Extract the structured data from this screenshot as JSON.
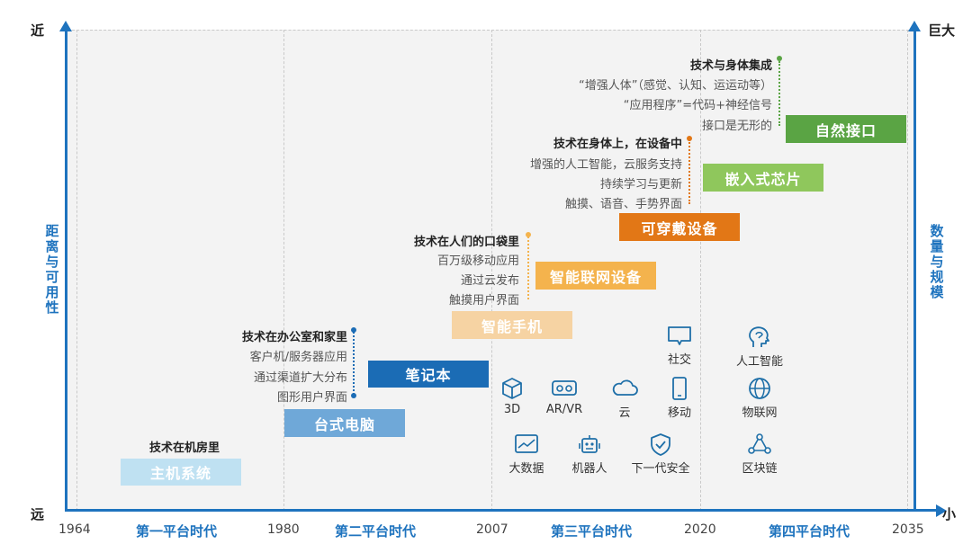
{
  "axes": {
    "top_left": "近",
    "bottom_left": "远",
    "top_right": "巨大",
    "bottom_right": "小",
    "left_label": "距离与可用性",
    "right_label": "数量与规模"
  },
  "years": [
    "1964",
    "1980",
    "2007",
    "2020",
    "2035"
  ],
  "eras": [
    "第一平台时代",
    "第二平台时代",
    "第三平台时代",
    "第四平台时代"
  ],
  "devices": [
    {
      "label": "主机系统",
      "color": "#bfe1f2"
    },
    {
      "label": "台式电脑",
      "color": "#6fa8d8"
    },
    {
      "label": "笔记本",
      "color": "#1b6cb5"
    },
    {
      "label": "智能手机",
      "color": "#f6d3a3"
    },
    {
      "label": "智能联网设备",
      "color": "#f4b34d"
    },
    {
      "label": "可穿戴设备",
      "color": "#e27716"
    },
    {
      "label": "嵌入式芯片",
      "color": "#8fc75c"
    },
    {
      "label": "自然接口",
      "color": "#5aa444"
    }
  ],
  "annotations": [
    {
      "header": "技术在机房里",
      "lines": []
    },
    {
      "header": "技术在办公室和家里",
      "lines": [
        "客户机/服务器应用",
        "通过渠道扩大分布",
        "图形用户界面"
      ],
      "color": "#1b6cb5"
    },
    {
      "header": "技术在人们的口袋里",
      "lines": [
        "百万级移动应用",
        "通过云发布",
        "触摸用户界面"
      ],
      "color": "#f4b34d"
    },
    {
      "header": "技术在身体上，在设备中",
      "lines": [
        "增强的人工智能，云服务支持",
        "持续学习与更新",
        "触摸、语音、手势界面"
      ],
      "color": "#e27716"
    },
    {
      "header": "技术与身体集成",
      "lines": [
        "“增强人体”（感觉、认知、运运动等）",
        "“应用程序”=代码+神经信号",
        "接口是无形的"
      ],
      "color": "#5aa444"
    }
  ],
  "tech_icons": [
    {
      "label": "社交",
      "icon": "chat-bubble-icon"
    },
    {
      "label": "人工智能",
      "icon": "brain-head-icon"
    },
    {
      "label": "3D",
      "icon": "cube-icon"
    },
    {
      "label": "AR/VR",
      "icon": "vr-goggles-icon"
    },
    {
      "label": "云",
      "icon": "cloud-icon"
    },
    {
      "label": "移动",
      "icon": "mobile-phone-icon"
    },
    {
      "label": "物联网",
      "icon": "globe-icon"
    },
    {
      "label": "大数据",
      "icon": "data-chart-icon"
    },
    {
      "label": "机器人",
      "icon": "robot-icon"
    },
    {
      "label": "下一代安全",
      "icon": "shield-check-icon"
    },
    {
      "label": "区块链",
      "icon": "blockchain-icon"
    }
  ],
  "colors": {
    "axis": "#1e73be",
    "icon": "#1e6fa8"
  }
}
